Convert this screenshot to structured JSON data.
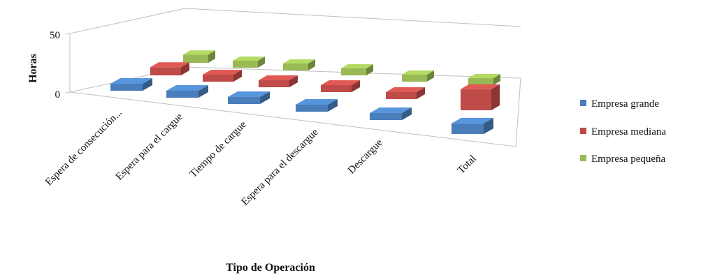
{
  "chart_data": {
    "type": "bar",
    "style": "3d-column",
    "title": "",
    "xlabel": "Tipo de Operación",
    "ylabel": "Horas",
    "yticks": [
      "0",
      "50"
    ],
    "ylim": [
      0,
      50
    ],
    "grid": false,
    "legend_position": "right",
    "categories": [
      "Espera de consecución...",
      "Espera para el cargue",
      "Tiempo de cargue",
      "Espera para el descargue",
      "Descargue",
      "Total"
    ],
    "series": [
      {
        "name": "Empresa grande",
        "color": "#4A7EBB",
        "values": [
          2,
          1,
          1,
          1,
          1,
          9
        ]
      },
      {
        "name": "Empresa mediana",
        "color": "#BE4B48",
        "values": [
          7,
          1,
          1,
          2,
          2,
          18
        ]
      },
      {
        "name": "Empresa pequeña",
        "color": "#98B954",
        "values": [
          7,
          2,
          2,
          2,
          2,
          5
        ]
      }
    ]
  }
}
